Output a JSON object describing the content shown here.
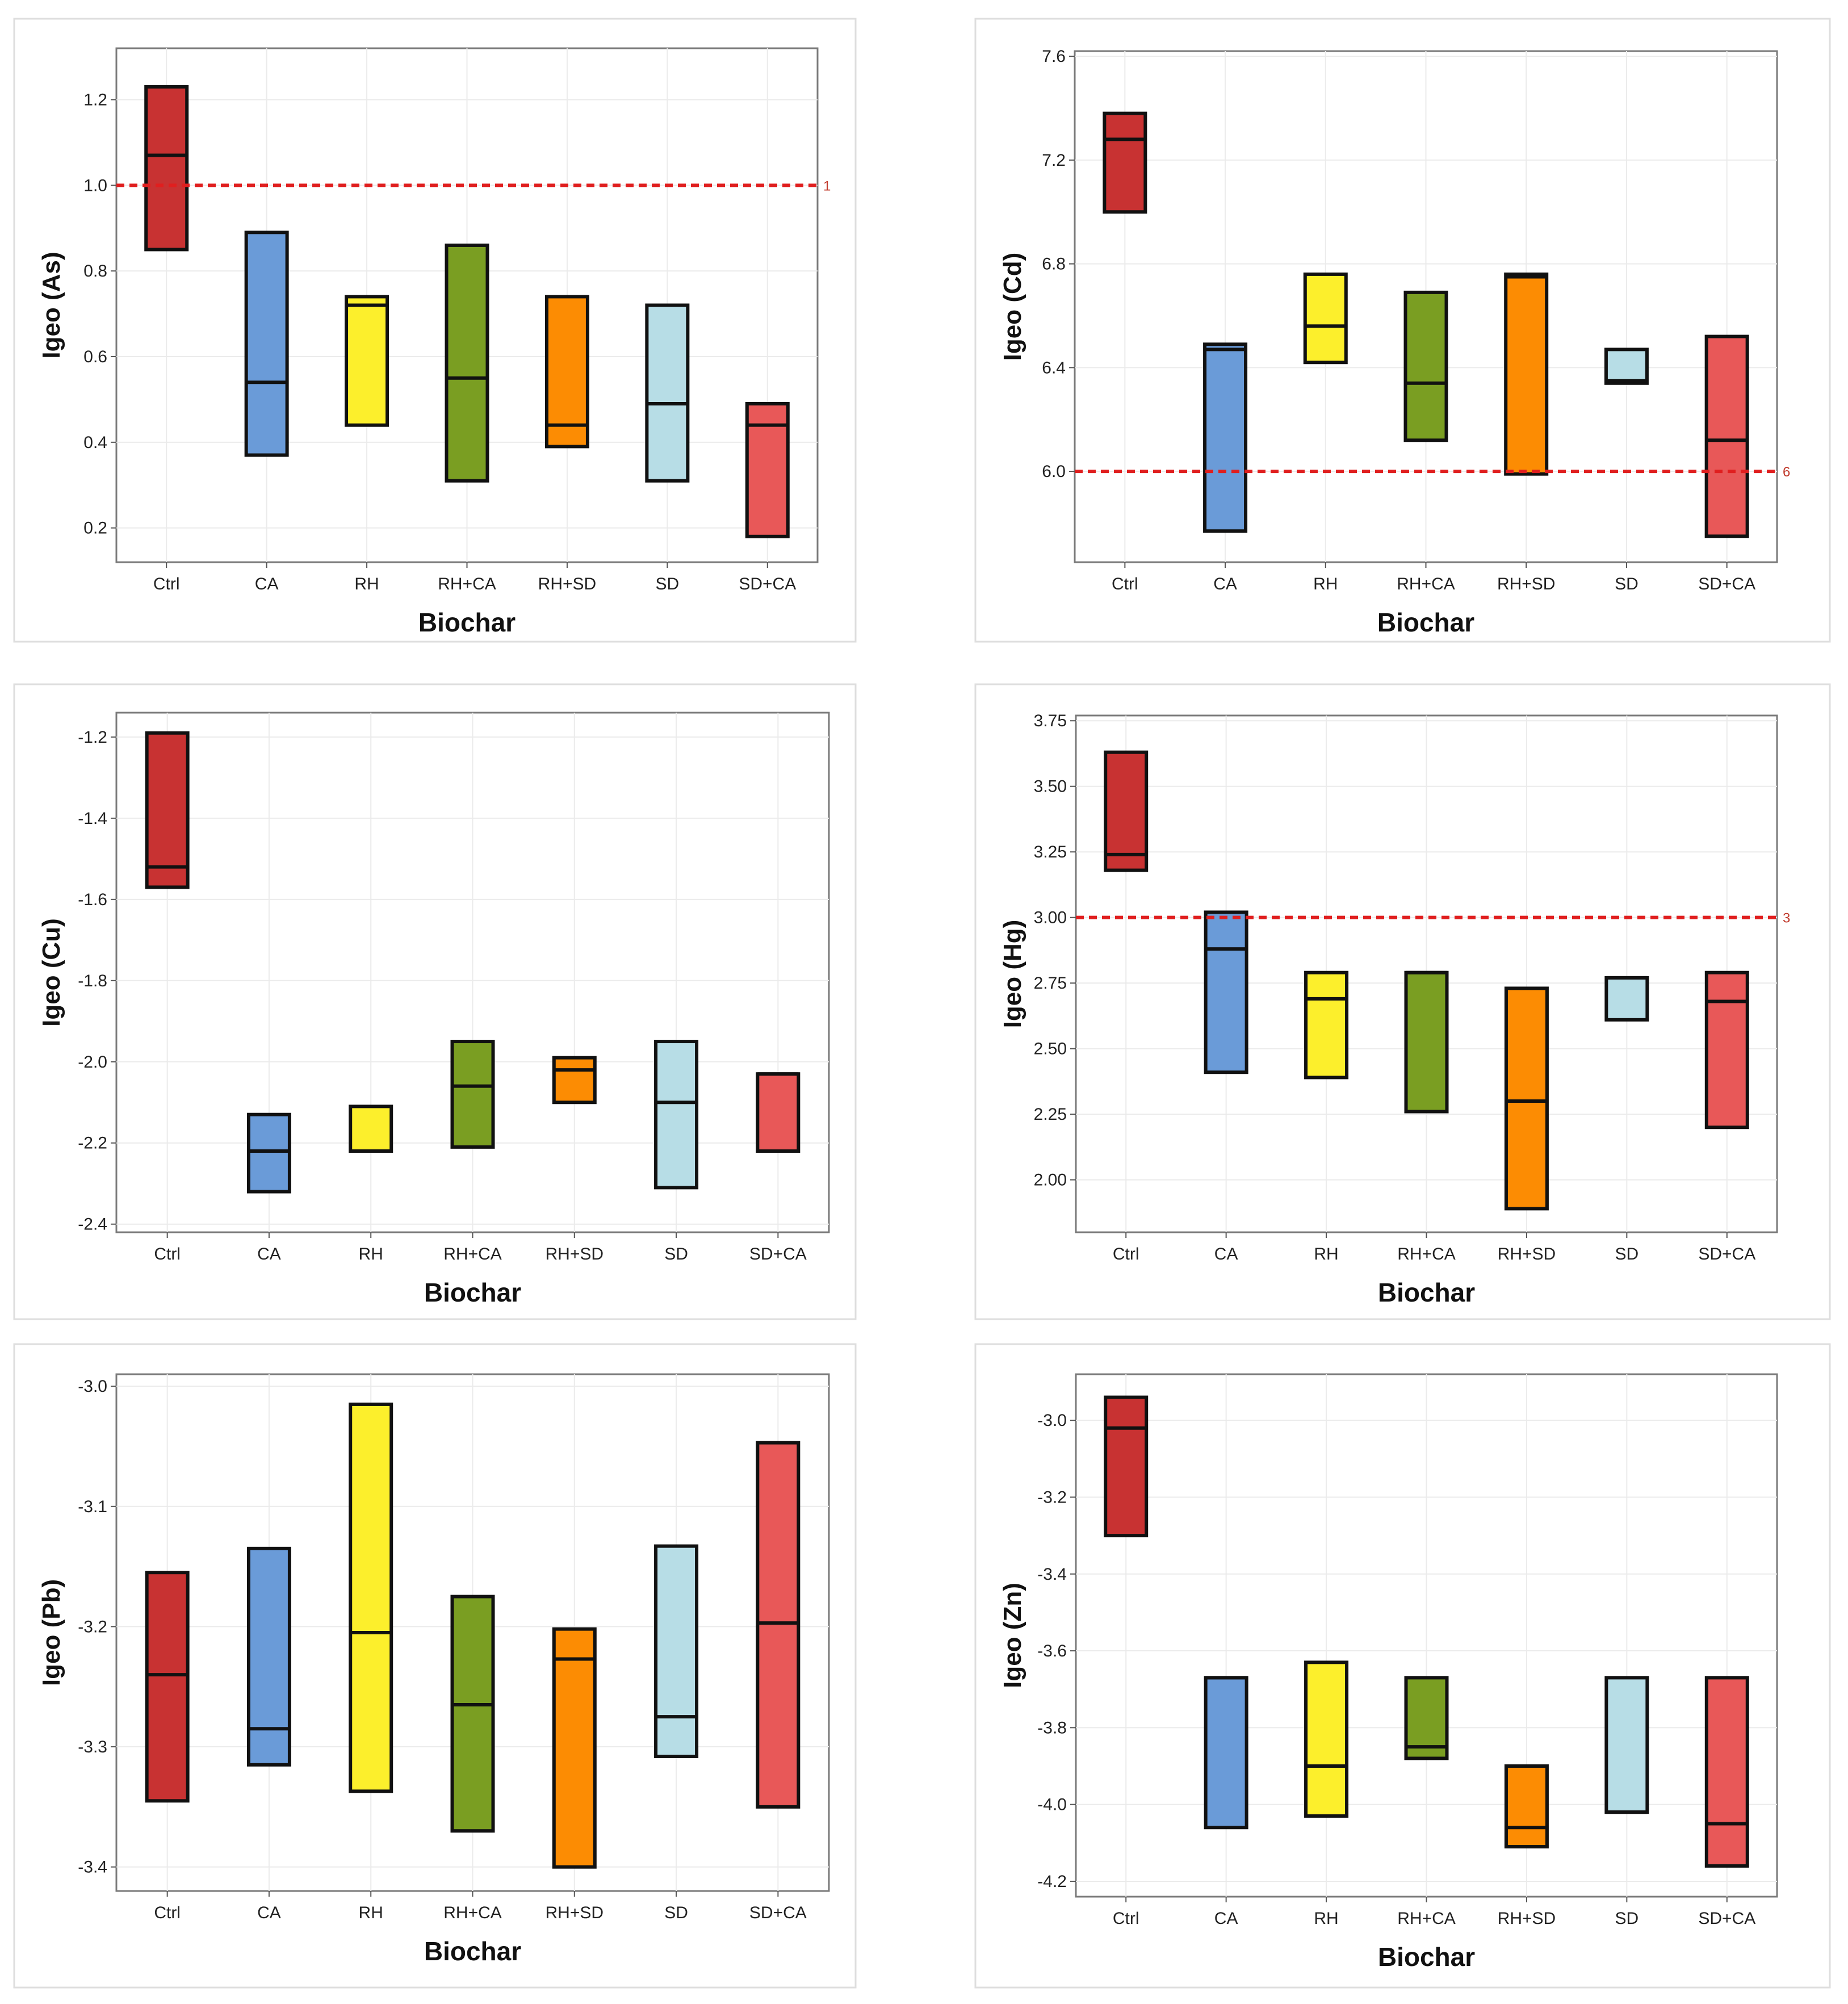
{
  "colors": {
    "Ctrl": "#c83232",
    "CA": "#6a9bd8",
    "RH": "#fcef2c",
    "RH+CA": "#7a9e22",
    "RH+SD": "#fc8c03",
    "SD": "#b7dde6",
    "SD+CA": "#e85858",
    "reference_line": "#e01f1f"
  },
  "chart_data": [
    {
      "type": "box",
      "title": "",
      "xlabel": "Biochar",
      "ylabel": "Igeo (As)",
      "ylim": [
        0.12,
        1.32
      ],
      "yticks": [
        0.2,
        0.4,
        0.6,
        0.8,
        1.0,
        1.2
      ],
      "ytick_labels": [
        "0.2",
        "0.4",
        "0.6",
        "0.8",
        "1.0",
        "1.2"
      ],
      "categories": [
        "Ctrl",
        "CA",
        "RH",
        "RH+CA",
        "RH+SD",
        "SD",
        "SD+CA"
      ],
      "boxes": [
        {
          "category": "Ctrl",
          "low": 0.85,
          "median": 1.07,
          "high": 1.23
        },
        {
          "category": "CA",
          "low": 0.37,
          "median": 0.54,
          "high": 0.89
        },
        {
          "category": "RH",
          "low": 0.44,
          "median": 0.72,
          "high": 0.74
        },
        {
          "category": "RH+CA",
          "low": 0.31,
          "median": 0.55,
          "high": 0.86
        },
        {
          "category": "RH+SD",
          "low": 0.39,
          "median": 0.44,
          "high": 0.74
        },
        {
          "category": "SD",
          "low": 0.31,
          "median": 0.49,
          "high": 0.72
        },
        {
          "category": "SD+CA",
          "low": 0.18,
          "median": 0.44,
          "high": 0.49
        }
      ],
      "reference_line": {
        "value": 1,
        "label": "1"
      }
    },
    {
      "type": "box",
      "title": "",
      "xlabel": "Biochar",
      "ylabel": "Igeo (Cd)",
      "ylim": [
        5.65,
        7.62
      ],
      "yticks": [
        6.0,
        6.4,
        6.8,
        7.2,
        7.6
      ],
      "ytick_labels": [
        "6.0",
        "6.4",
        "6.8",
        "7.2",
        "7.6"
      ],
      "categories": [
        "Ctrl",
        "CA",
        "RH",
        "RH+CA",
        "RH+SD",
        "SD",
        "SD+CA"
      ],
      "boxes": [
        {
          "category": "Ctrl",
          "low": 7.0,
          "median": 7.28,
          "high": 7.38
        },
        {
          "category": "CA",
          "low": 5.77,
          "median": 6.47,
          "high": 6.49
        },
        {
          "category": "RH",
          "low": 6.42,
          "median": 6.56,
          "high": 6.76
        },
        {
          "category": "RH+CA",
          "low": 6.12,
          "median": 6.34,
          "high": 6.69
        },
        {
          "category": "RH+SD",
          "low": 5.99,
          "median": 6.75,
          "high": 6.76
        },
        {
          "category": "SD",
          "low": 6.34,
          "median": 6.35,
          "high": 6.47
        },
        {
          "category": "SD+CA",
          "low": 5.75,
          "median": 6.12,
          "high": 6.52
        }
      ],
      "reference_line": {
        "value": 6,
        "label": "6"
      }
    },
    {
      "type": "box",
      "title": "",
      "xlabel": "Biochar",
      "ylabel": "Igeo (Cu)",
      "ylim": [
        -2.42,
        -1.14
      ],
      "yticks": [
        -2.4,
        -2.2,
        -2.0,
        -1.8,
        -1.6,
        -1.4,
        -1.2
      ],
      "ytick_labels": [
        "-2.4",
        "-2.2",
        "-2.0",
        "-1.8",
        "-1.6",
        "-1.4",
        "-1.2"
      ],
      "categories": [
        "Ctrl",
        "CA",
        "RH",
        "RH+CA",
        "RH+SD",
        "SD",
        "SD+CA"
      ],
      "boxes": [
        {
          "category": "Ctrl",
          "low": -1.57,
          "median": -1.52,
          "high": -1.19
        },
        {
          "category": "CA",
          "low": -2.32,
          "median": -2.22,
          "high": -2.13
        },
        {
          "category": "RH",
          "low": -2.22,
          "median": -2.22,
          "high": -2.11
        },
        {
          "category": "RH+CA",
          "low": -2.21,
          "median": -2.06,
          "high": -1.95
        },
        {
          "category": "RH+SD",
          "low": -2.1,
          "median": -2.02,
          "high": -1.99
        },
        {
          "category": "SD",
          "low": -2.31,
          "median": -2.1,
          "high": -1.95
        },
        {
          "category": "SD+CA",
          "low": -2.22,
          "median": -2.03,
          "high": -2.03
        }
      ]
    },
    {
      "type": "box",
      "title": "",
      "xlabel": "Biochar",
      "ylabel": "Igeo (Hg)",
      "ylim": [
        1.8,
        3.77
      ],
      "yticks": [
        2.0,
        2.25,
        2.5,
        2.75,
        3.0,
        3.25,
        3.5,
        3.75
      ],
      "ytick_labels": [
        "2.00",
        "2.25",
        "2.50",
        "2.75",
        "3.00",
        "3.25",
        "3.50",
        "3.75"
      ],
      "categories": [
        "Ctrl",
        "CA",
        "RH",
        "RH+CA",
        "RH+SD",
        "SD",
        "SD+CA"
      ],
      "boxes": [
        {
          "category": "Ctrl",
          "low": 3.18,
          "median": 3.24,
          "high": 3.63
        },
        {
          "category": "CA",
          "low": 2.41,
          "median": 2.88,
          "high": 3.02
        },
        {
          "category": "RH",
          "low": 2.39,
          "median": 2.69,
          "high": 2.79
        },
        {
          "category": "RH+CA",
          "low": 2.26,
          "median": 2.79,
          "high": 2.79
        },
        {
          "category": "RH+SD",
          "low": 1.89,
          "median": 2.3,
          "high": 2.73
        },
        {
          "category": "SD",
          "low": 2.61,
          "median": 2.77,
          "high": 2.77
        },
        {
          "category": "SD+CA",
          "low": 2.2,
          "median": 2.68,
          "high": 2.79
        }
      ],
      "reference_line": {
        "value": 3,
        "label": "3"
      }
    },
    {
      "type": "box",
      "title": "",
      "xlabel": "Biochar",
      "ylabel": "Igeo (Pb)",
      "ylim": [
        -3.42,
        -2.99
      ],
      "yticks": [
        -3.4,
        -3.3,
        -3.2,
        -3.1,
        -3.0
      ],
      "ytick_labels": [
        "-3.4",
        "-3.3",
        "-3.2",
        "-3.1",
        "-3.0"
      ],
      "categories": [
        "Ctrl",
        "CA",
        "RH",
        "RH+CA",
        "RH+SD",
        "SD",
        "SD+CA"
      ],
      "boxes": [
        {
          "category": "Ctrl",
          "low": -3.345,
          "median": -3.24,
          "high": -3.155
        },
        {
          "category": "CA",
          "low": -3.315,
          "median": -3.285,
          "high": -3.135
        },
        {
          "category": "RH",
          "low": -3.337,
          "median": -3.205,
          "high": -3.015
        },
        {
          "category": "RH+CA",
          "low": -3.37,
          "median": -3.265,
          "high": -3.175
        },
        {
          "category": "RH+SD",
          "low": -3.4,
          "median": -3.227,
          "high": -3.202
        },
        {
          "category": "SD",
          "low": -3.308,
          "median": -3.275,
          "high": -3.133
        },
        {
          "category": "SD+CA",
          "low": -3.35,
          "median": -3.197,
          "high": -3.047
        }
      ]
    },
    {
      "type": "box",
      "title": "",
      "xlabel": "Biochar",
      "ylabel": "Igeo (Zn)",
      "ylim": [
        -4.24,
        -2.88
      ],
      "yticks": [
        -4.2,
        -4.0,
        -3.8,
        -3.6,
        -3.4,
        -3.2,
        -3.0
      ],
      "ytick_labels": [
        "-4.2",
        "-4.0",
        "-3.8",
        "-3.6",
        "-3.4",
        "-3.2",
        "-3.0"
      ],
      "categories": [
        "Ctrl",
        "CA",
        "RH",
        "RH+CA",
        "RH+SD",
        "SD",
        "SD+CA"
      ],
      "boxes": [
        {
          "category": "Ctrl",
          "low": -3.3,
          "median": -3.02,
          "high": -2.94
        },
        {
          "category": "CA",
          "low": -4.06,
          "median": -3.67,
          "high": -3.67
        },
        {
          "category": "RH",
          "low": -4.03,
          "median": -3.9,
          "high": -3.63
        },
        {
          "category": "RH+CA",
          "low": -3.88,
          "median": -3.85,
          "high": -3.67
        },
        {
          "category": "RH+SD",
          "low": -4.11,
          "median": -4.06,
          "high": -3.9
        },
        {
          "category": "SD",
          "low": -4.02,
          "median": -4.02,
          "high": -3.67
        },
        {
          "category": "SD+CA",
          "low": -4.16,
          "median": -4.05,
          "high": -3.67
        }
      ]
    }
  ]
}
